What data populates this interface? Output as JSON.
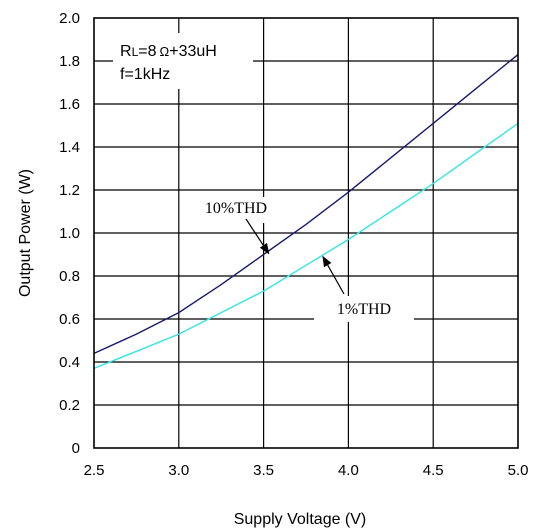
{
  "chart_data": {
    "type": "line",
    "xlabel": "Supply Voltage (V)",
    "ylabel": "Output Power (W)",
    "xlim": [
      2.5,
      5.0
    ],
    "ylim": [
      0,
      2.0
    ],
    "xticks": [
      2.5,
      3.0,
      3.5,
      4.0,
      4.5,
      5.0
    ],
    "xtick_labels": [
      "2.5",
      "3.0",
      "3.5",
      "4.0",
      "4.5",
      "5.0"
    ],
    "yticks": [
      0,
      0.2,
      0.4,
      0.6,
      0.8,
      1.0,
      1.2,
      1.4,
      1.6,
      1.8,
      2.0
    ],
    "ytick_labels": [
      "0",
      "0.2",
      "0.4",
      "0.6",
      "0.8",
      "1.0",
      "1.2",
      "1.4",
      "1.6",
      "1.8",
      "2.0"
    ],
    "grid": true,
    "conditions": {
      "line1_main": "R",
      "line1_sub": "L",
      "line1_rest": "=8",
      "line1_ohm": "Ω",
      "line1_tail": "+33uH",
      "line2": "f=1kHz"
    },
    "series": [
      {
        "name": "10%THD",
        "color": "#1a1a6e",
        "x": [
          2.5,
          2.75,
          3.0,
          3.25,
          3.5,
          3.75,
          4.0,
          4.25,
          4.5,
          4.75,
          5.0
        ],
        "y": [
          0.44,
          0.53,
          0.63,
          0.76,
          0.9,
          1.04,
          1.19,
          1.35,
          1.51,
          1.67,
          1.83
        ]
      },
      {
        "name": "1%THD",
        "color": "#33e6e6",
        "x": [
          2.5,
          2.75,
          3.0,
          3.25,
          3.5,
          3.75,
          4.0,
          4.25,
          4.5,
          4.75,
          5.0
        ],
        "y": [
          0.37,
          0.45,
          0.53,
          0.63,
          0.73,
          0.85,
          0.97,
          1.1,
          1.23,
          1.37,
          1.51
        ]
      }
    ],
    "annotations": [
      {
        "text": "10%THD",
        "series": 0,
        "x": 3.53,
        "y": 0.905
      },
      {
        "text": "1%THD",
        "series": 1,
        "x": 3.85,
        "y": 0.89
      }
    ]
  }
}
